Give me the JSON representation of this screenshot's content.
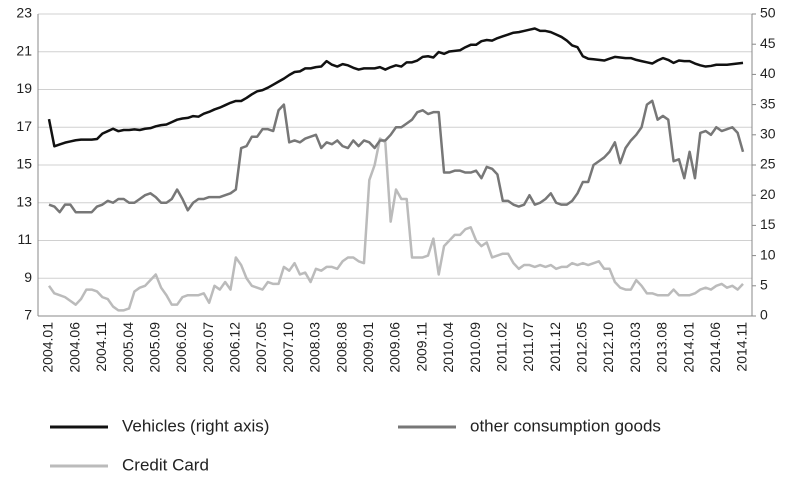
{
  "chart_data": {
    "type": "line",
    "categories": [
      "2004.01",
      null,
      null,
      null,
      null,
      "2004.06",
      null,
      null,
      null,
      null,
      "2004.11",
      null,
      null,
      null,
      null,
      "2005.04",
      null,
      null,
      null,
      null,
      "2005.09",
      null,
      null,
      null,
      null,
      "2006.02",
      null,
      null,
      null,
      null,
      "2006.07",
      null,
      null,
      null,
      null,
      "2006.12",
      null,
      null,
      null,
      null,
      "2007.05",
      null,
      null,
      null,
      null,
      "2007.10",
      null,
      null,
      null,
      null,
      "2008.03",
      null,
      null,
      null,
      null,
      "2008.08",
      null,
      null,
      null,
      null,
      "2009.01",
      null,
      null,
      null,
      null,
      "2009.06",
      null,
      null,
      null,
      null,
      "2009.11",
      null,
      null,
      null,
      null,
      "2010.04",
      null,
      null,
      null,
      null,
      "2010.09",
      null,
      null,
      null,
      null,
      "2011.02",
      null,
      null,
      null,
      null,
      "2011.07",
      null,
      null,
      null,
      null,
      "2011.12",
      null,
      null,
      null,
      null,
      "2012.05",
      null,
      null,
      null,
      null,
      "2012.10",
      null,
      null,
      null,
      null,
      "2013.03",
      null,
      null,
      null,
      null,
      "2013.08",
      null,
      null,
      null,
      null,
      "2014.01",
      null,
      null,
      null,
      null,
      "2014.06",
      null,
      null,
      null,
      null,
      "2014.11"
    ],
    "series": [
      {
        "name": "Vehicles (right axis)",
        "color": "#111111",
        "axis": "y2",
        "values": [
          32.6,
          28.1,
          28.4,
          28.7,
          28.9,
          29.1,
          29.2,
          29.2,
          29.2,
          29.3,
          30.2,
          30.6,
          31.0,
          30.6,
          30.8,
          30.8,
          30.9,
          30.8,
          31.0,
          31.1,
          31.4,
          31.6,
          31.7,
          32.1,
          32.5,
          32.7,
          32.8,
          33.1,
          33.0,
          33.5,
          33.8,
          34.2,
          34.5,
          34.9,
          35.3,
          35.6,
          35.6,
          36.1,
          36.7,
          37.2,
          37.4,
          37.8,
          38.3,
          38.8,
          39.3,
          39.9,
          40.4,
          40.5,
          41.0,
          41.0,
          41.2,
          41.3,
          42.2,
          41.6,
          41.3,
          41.7,
          41.5,
          41.1,
          40.8,
          41.0,
          41.0,
          41.0,
          41.2,
          40.8,
          41.2,
          41.5,
          41.3,
          42.0,
          42.0,
          42.3,
          42.9,
          43.0,
          42.8,
          43.7,
          43.4,
          43.8,
          43.9,
          44.0,
          44.5,
          44.9,
          44.9,
          45.5,
          45.7,
          45.6,
          46.0,
          46.3,
          46.6,
          46.9,
          47.0,
          47.2,
          47.4,
          47.6,
          47.2,
          47.2,
          47.0,
          46.6,
          46.2,
          45.6,
          44.8,
          44.5,
          43.0,
          42.6,
          42.5,
          42.4,
          42.3,
          42.6,
          42.9,
          42.8,
          42.7,
          42.7,
          42.4,
          42.2,
          42.0,
          41.8,
          42.3,
          42.7,
          42.4,
          41.9,
          42.3,
          42.2,
          42.2,
          41.8,
          41.5,
          41.3,
          41.4,
          41.6,
          41.6,
          41.6,
          41.7,
          41.8,
          41.9
        ]
      },
      {
        "name": "other consumption goods",
        "color": "#777777",
        "values": [
          12.9,
          12.8,
          12.5,
          12.9,
          12.9,
          12.5,
          12.5,
          12.5,
          12.5,
          12.8,
          12.9,
          13.1,
          13.0,
          13.2,
          13.2,
          13.0,
          13.0,
          13.2,
          13.4,
          13.5,
          13.3,
          13.0,
          13.0,
          13.2,
          13.7,
          13.2,
          12.6,
          13.0,
          13.2,
          13.2,
          13.3,
          13.3,
          13.3,
          13.4,
          13.5,
          13.7,
          15.9,
          16.0,
          16.5,
          16.5,
          16.9,
          16.9,
          16.8,
          17.9,
          18.2,
          16.2,
          16.3,
          16.2,
          16.4,
          16.5,
          16.6,
          15.9,
          16.2,
          16.1,
          16.3,
          16.0,
          15.9,
          16.3,
          16.0,
          16.3,
          16.2,
          15.9,
          16.3,
          16.3,
          16.6,
          17.0,
          17.0,
          17.2,
          17.4,
          17.8,
          17.9,
          17.7,
          17.8,
          17.8,
          14.6,
          14.6,
          14.7,
          14.7,
          14.6,
          14.6,
          14.7,
          14.3,
          14.9,
          14.8,
          14.5,
          13.1,
          13.1,
          12.9,
          12.8,
          12.9,
          13.4,
          12.9,
          13.0,
          13.2,
          13.5,
          13.0,
          12.9,
          12.9,
          13.1,
          13.5,
          14.1,
          14.1,
          15.0,
          15.2,
          15.4,
          15.7,
          16.2,
          15.1,
          15.9,
          16.3,
          16.6,
          17.0,
          18.2,
          18.4,
          17.4,
          17.6,
          17.4,
          15.2,
          15.3,
          14.3,
          15.7,
          14.3,
          16.7,
          16.8,
          16.6,
          17.0,
          16.8,
          16.9,
          17.0,
          16.7,
          15.7
        ]
      },
      {
        "name": "Credit Card",
        "color": "#bbbbbb",
        "values": [
          8.6,
          8.2,
          8.1,
          8.0,
          7.8,
          7.6,
          7.9,
          8.4,
          8.4,
          8.3,
          8.0,
          7.9,
          7.5,
          7.3,
          7.3,
          7.4,
          8.3,
          8.5,
          8.6,
          8.9,
          9.2,
          8.5,
          8.1,
          7.6,
          7.6,
          8.0,
          8.1,
          8.1,
          8.1,
          8.2,
          7.7,
          8.6,
          8.4,
          8.8,
          8.4,
          10.1,
          9.7,
          9.0,
          8.6,
          8.5,
          8.4,
          8.8,
          8.7,
          8.7,
          9.6,
          9.4,
          9.8,
          9.2,
          9.3,
          8.8,
          9.5,
          9.4,
          9.6,
          9.6,
          9.5,
          9.9,
          10.1,
          10.1,
          9.9,
          9.8,
          14.2,
          15.0,
          16.4,
          16.2,
          12.0,
          13.7,
          13.2,
          13.2,
          10.1,
          10.1,
          10.1,
          10.2,
          11.1,
          9.2,
          10.7,
          11.0,
          11.3,
          11.3,
          11.6,
          11.7,
          11.0,
          10.7,
          10.9,
          10.1,
          10.2,
          10.3,
          10.3,
          9.8,
          9.5,
          9.7,
          9.7,
          9.6,
          9.7,
          9.6,
          9.7,
          9.5,
          9.6,
          9.6,
          9.8,
          9.7,
          9.8,
          9.7,
          9.8,
          9.9,
          9.5,
          9.5,
          8.8,
          8.5,
          8.4,
          8.4,
          8.9,
          8.6,
          8.2,
          8.2,
          8.1,
          8.1,
          8.1,
          8.4,
          8.1,
          8.1,
          8.1,
          8.2,
          8.4,
          8.5,
          8.4,
          8.6,
          8.7,
          8.5,
          8.6,
          8.4,
          8.7
        ]
      }
    ],
    "ylim": [
      7,
      23
    ],
    "yticks": [
      7,
      9,
      11,
      13,
      15,
      17,
      19,
      21,
      23
    ],
    "y2lim": [
      0,
      50
    ],
    "y2ticks": [
      0,
      5,
      10,
      15,
      20,
      25,
      30,
      35,
      40,
      45,
      50
    ],
    "grid": true
  }
}
